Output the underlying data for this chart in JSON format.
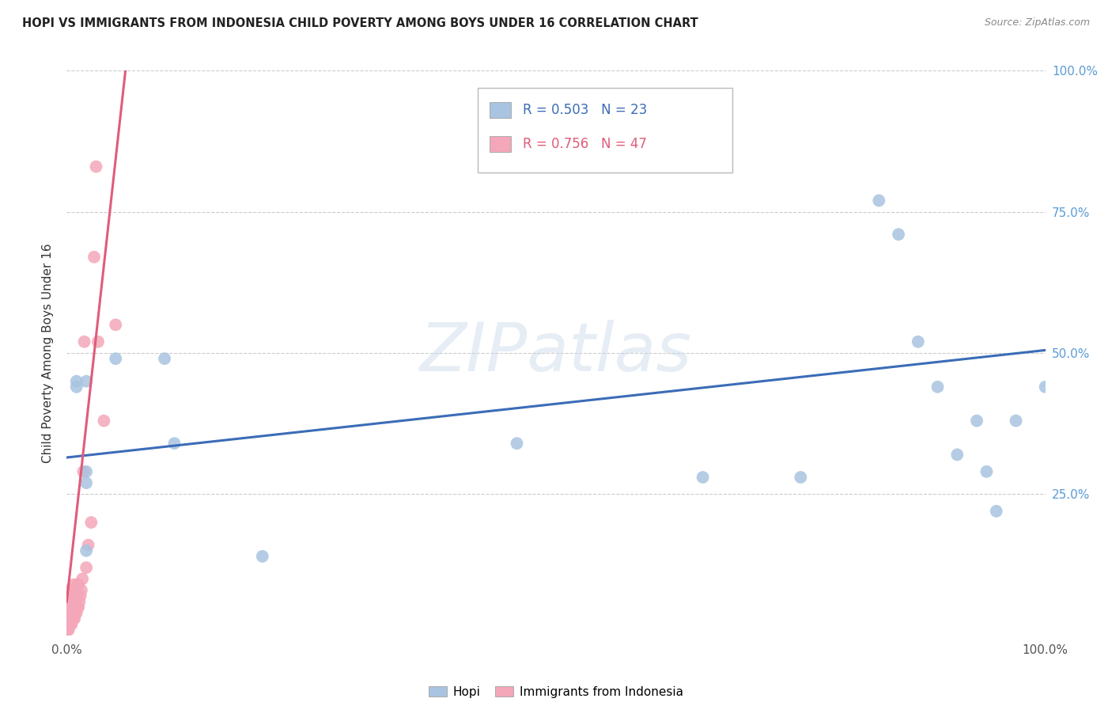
{
  "title": "HOPI VS IMMIGRANTS FROM INDONESIA CHILD POVERTY AMONG BOYS UNDER 16 CORRELATION CHART",
  "source": "Source: ZipAtlas.com",
  "ylabel": "Child Poverty Among Boys Under 16",
  "xlim": [
    0,
    1.0
  ],
  "ylim": [
    0,
    1.0
  ],
  "hopi_R": "0.503",
  "hopi_N": "23",
  "indo_R": "0.756",
  "indo_N": "47",
  "hopi_color": "#a8c4e0",
  "indo_color": "#f4a7b9",
  "hopi_line_color": "#3b6cb7",
  "indo_line_color": "#e05c7a",
  "background_color": "#ffffff",
  "watermark_text": "ZIPatlas",
  "hopi_points_x": [
    0.01,
    0.01,
    0.02,
    0.02,
    0.02,
    0.02,
    0.05,
    0.1,
    0.11,
    0.2,
    0.46,
    0.65,
    0.75,
    0.83,
    0.85,
    0.87,
    0.89,
    0.91,
    0.93,
    0.94,
    0.95,
    0.97,
    1.0
  ],
  "hopi_points_y": [
    0.44,
    0.45,
    0.45,
    0.29,
    0.27,
    0.15,
    0.49,
    0.49,
    0.34,
    0.14,
    0.34,
    0.28,
    0.28,
    0.77,
    0.71,
    0.52,
    0.44,
    0.32,
    0.38,
    0.29,
    0.22,
    0.38,
    0.44
  ],
  "indo_points_x": [
    0.001,
    0.001,
    0.001,
    0.001,
    0.002,
    0.002,
    0.002,
    0.002,
    0.003,
    0.003,
    0.003,
    0.003,
    0.004,
    0.004,
    0.004,
    0.005,
    0.005,
    0.006,
    0.006,
    0.006,
    0.007,
    0.007,
    0.007,
    0.008,
    0.008,
    0.009,
    0.009,
    0.01,
    0.01,
    0.011,
    0.011,
    0.012,
    0.012,
    0.013,
    0.014,
    0.015,
    0.016,
    0.017,
    0.018,
    0.02,
    0.022,
    0.025,
    0.028,
    0.03,
    0.032,
    0.038,
    0.05
  ],
  "indo_points_y": [
    0.01,
    0.02,
    0.03,
    0.05,
    0.01,
    0.03,
    0.04,
    0.06,
    0.02,
    0.04,
    0.06,
    0.08,
    0.02,
    0.04,
    0.07,
    0.02,
    0.05,
    0.03,
    0.05,
    0.08,
    0.03,
    0.06,
    0.09,
    0.03,
    0.06,
    0.04,
    0.07,
    0.04,
    0.07,
    0.05,
    0.09,
    0.05,
    0.09,
    0.06,
    0.07,
    0.08,
    0.1,
    0.29,
    0.52,
    0.12,
    0.16,
    0.2,
    0.67,
    0.83,
    0.52,
    0.38,
    0.55
  ],
  "hopi_line_x": [
    0.0,
    1.0
  ],
  "hopi_line_y": [
    0.315,
    0.505
  ],
  "indo_line_x": [
    0.0,
    0.06
  ],
  "indo_line_y": [
    0.06,
    1.0
  ]
}
